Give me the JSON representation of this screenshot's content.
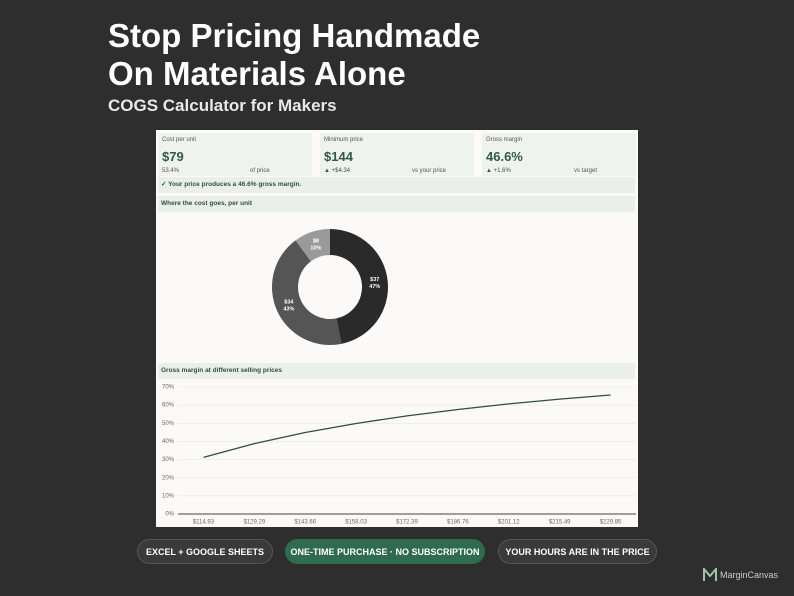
{
  "header": {
    "title_lines": [
      "Stop Pricing Handmade",
      "On Materials Alone"
    ],
    "subtitle": "COGS Calculator for Makers"
  },
  "kpis": [
    {
      "label": "Cost per unit",
      "value": "$79",
      "sub": "53.4%",
      "note": "of price"
    },
    {
      "label": "Minimum price",
      "value": "$144",
      "sub": "▲ +$4.34",
      "note": "vs your price"
    },
    {
      "label": "Gross margin",
      "value": "46.6%",
      "sub": "▲ +1.6%",
      "note": "vs target"
    }
  ],
  "banner": "✓ Your price produces a 46.6% gross margin.",
  "chart_data": [
    {
      "type": "pie",
      "title": "Where the cost goes, per unit",
      "donut": true,
      "values": [
        37,
        34,
        8
      ],
      "value_labels": [
        "$37",
        "$34",
        "$8"
      ],
      "percent_labels": [
        "47%",
        "43%",
        "10%"
      ],
      "colors": [
        "#2a2a2a",
        "#555555",
        "#9a9a9a"
      ]
    },
    {
      "type": "line",
      "title": "Gross margin at different selling prices",
      "categories": [
        "$114.93",
        "$129.29",
        "$143.66",
        "$158.03",
        "$172.39",
        "$186.76",
        "$201.12",
        "$215.49",
        "$229.85"
      ],
      "series": [
        {
          "color": "#2f4f3e",
          "values": [
            31.2,
            38.8,
            44.9,
            49.9,
            54.1,
            57.6,
            60.7,
            63.3,
            65.6
          ]
        }
      ],
      "ylim": [
        0,
        70
      ],
      "yticks": [
        {
          "value": 0,
          "label": "0%"
        },
        {
          "value": 10,
          "label": "10%"
        },
        {
          "value": 20,
          "label": "20%"
        },
        {
          "value": 30,
          "label": "30%"
        },
        {
          "value": 40,
          "label": "40%"
        },
        {
          "value": 50,
          "label": "50%"
        },
        {
          "value": 60,
          "label": "60%"
        },
        {
          "value": 70,
          "label": "70%"
        }
      ],
      "grid": true
    }
  ],
  "buttons": [
    "EXCEL + GOOGLE SHEETS",
    "ONE-TIME PURCHASE · NO SUBSCRIPTION",
    "YOUR HOURS ARE IN THE PRICE"
  ],
  "brand": "MarginCanvas"
}
